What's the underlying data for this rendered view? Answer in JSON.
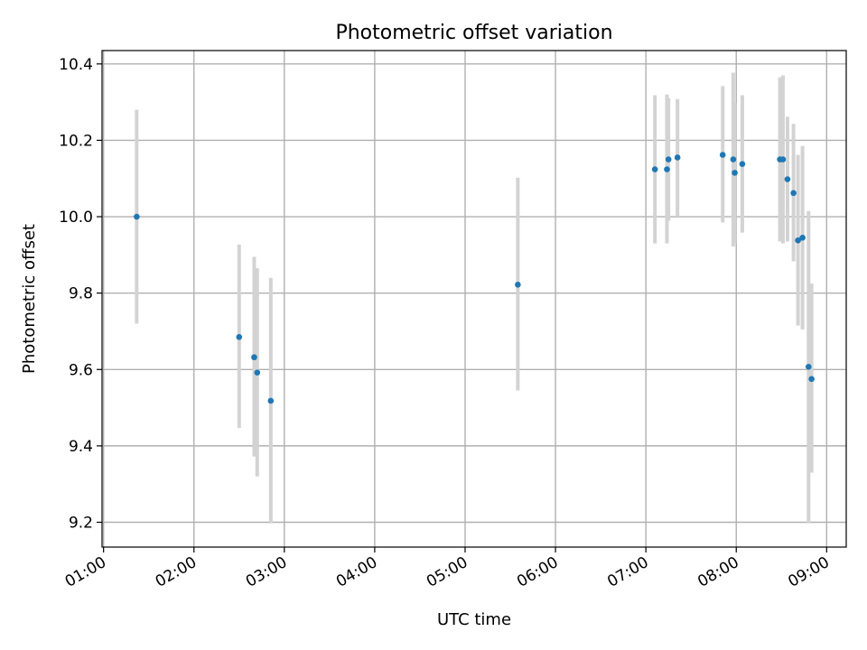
{
  "chart_data": {
    "type": "scatter",
    "title": "Photometric offset variation",
    "xlabel": "UTC time",
    "ylabel": "Photometric offset",
    "xlim": [
      "00:59",
      "09:13"
    ],
    "ylim": [
      9.135,
      10.435
    ],
    "x_ticks": [
      "01:00",
      "02:00",
      "03:00",
      "04:00",
      "05:00",
      "06:00",
      "07:00",
      "08:00",
      "09:00"
    ],
    "y_ticks": [
      "9.2",
      "9.4",
      "9.6",
      "9.8",
      "10.0",
      "10.2",
      "10.4"
    ],
    "grid": true,
    "legend": "none",
    "colors": {
      "point": "#1f77b4",
      "errorbar": "#d3d3d3",
      "grid": "#b0b0b0"
    },
    "points": [
      {
        "x": "01:22",
        "y": 10.0,
        "ylow": 9.72,
        "yhigh": 10.28
      },
      {
        "x": "02:30",
        "y": 9.685,
        "ylow": 9.447,
        "yhigh": 9.927
      },
      {
        "x": "02:40",
        "y": 9.632,
        "ylow": 9.372,
        "yhigh": 9.895
      },
      {
        "x": "02:42",
        "y": 9.592,
        "ylow": 9.32,
        "yhigh": 9.865
      },
      {
        "x": "02:51",
        "y": 9.518,
        "ylow": 9.197,
        "yhigh": 9.84
      },
      {
        "x": "05:35",
        "y": 9.822,
        "ylow": 9.545,
        "yhigh": 10.102
      },
      {
        "x": "07:06",
        "y": 10.124,
        "ylow": 9.93,
        "yhigh": 10.318
      },
      {
        "x": "07:14",
        "y": 10.124,
        "ylow": 9.93,
        "yhigh": 10.32
      },
      {
        "x": "07:15",
        "y": 10.15,
        "ylow": 9.99,
        "yhigh": 10.31
      },
      {
        "x": "07:21",
        "y": 10.155,
        "ylow": 10.0,
        "yhigh": 10.308
      },
      {
        "x": "07:51",
        "y": 10.162,
        "ylow": 9.985,
        "yhigh": 10.342
      },
      {
        "x": "07:58",
        "y": 10.15,
        "ylow": 9.922,
        "yhigh": 10.377
      },
      {
        "x": "07:59",
        "y": 10.115,
        "ylow": 9.93,
        "yhigh": 10.298
      },
      {
        "x": "08:04",
        "y": 10.138,
        "ylow": 9.958,
        "yhigh": 10.318
      },
      {
        "x": "08:29",
        "y": 10.15,
        "ylow": 9.935,
        "yhigh": 10.365
      },
      {
        "x": "08:31",
        "y": 10.15,
        "ylow": 9.93,
        "yhigh": 10.37
      },
      {
        "x": "08:34",
        "y": 10.098,
        "ylow": 9.935,
        "yhigh": 10.262
      },
      {
        "x": "08:38",
        "y": 10.062,
        "ylow": 9.883,
        "yhigh": 10.243
      },
      {
        "x": "08:41",
        "y": 9.938,
        "ylow": 9.715,
        "yhigh": 10.162
      },
      {
        "x": "08:44",
        "y": 9.945,
        "ylow": 9.705,
        "yhigh": 10.185
      },
      {
        "x": "08:48",
        "y": 9.607,
        "ylow": 9.197,
        "yhigh": 10.015
      },
      {
        "x": "08:50",
        "y": 9.575,
        "ylow": 9.33,
        "yhigh": 9.825
      }
    ]
  }
}
